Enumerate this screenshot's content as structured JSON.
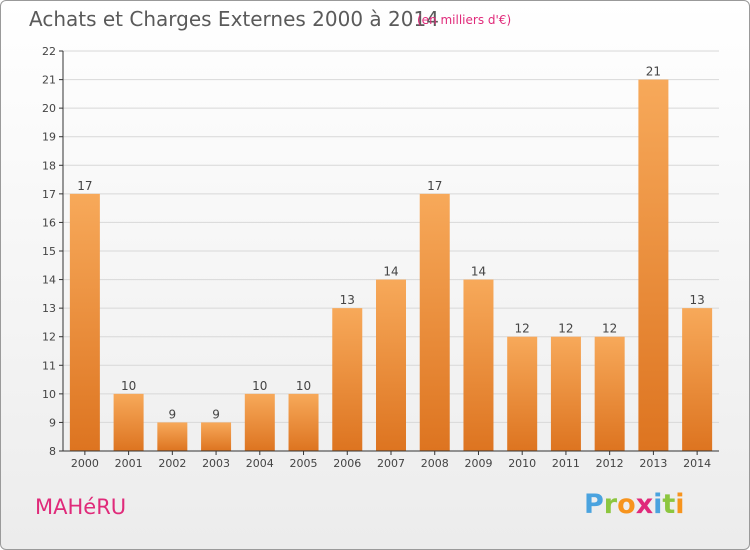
{
  "header": {
    "title": "Achats et Charges Externes 2000 à 2014",
    "subtitle": "(en milliers d'€)"
  },
  "footer": {
    "commune": "MAHéRU",
    "logo": {
      "letters": [
        "P",
        "r",
        "o",
        "x",
        "i",
        "t",
        "i"
      ],
      "colors": [
        "#4aa3df",
        "#8cc63f",
        "#f7941d",
        "#e02a7a",
        "#4aa3df",
        "#8cc63f",
        "#f7941d"
      ]
    }
  },
  "colors": {
    "bar_light": "#f7a95a",
    "bar_dark": "#dd7420",
    "grid": "#d8d8d8",
    "axis": "#333333",
    "text": "#444444"
  },
  "chart_data": {
    "type": "bar",
    "categories": [
      "2000",
      "2001",
      "2002",
      "2003",
      "2004",
      "2005",
      "2006",
      "2007",
      "2008",
      "2009",
      "2010",
      "2011",
      "2012",
      "2013",
      "2014"
    ],
    "values": [
      17,
      10,
      9,
      9,
      10,
      10,
      13,
      14,
      17,
      14,
      12,
      12,
      12,
      21,
      13
    ],
    "ylim": [
      8,
      22
    ],
    "yticks": [
      8,
      9,
      10,
      11,
      12,
      13,
      14,
      15,
      16,
      17,
      18,
      19,
      20,
      21,
      22
    ],
    "grid": true,
    "data_labels": true
  }
}
